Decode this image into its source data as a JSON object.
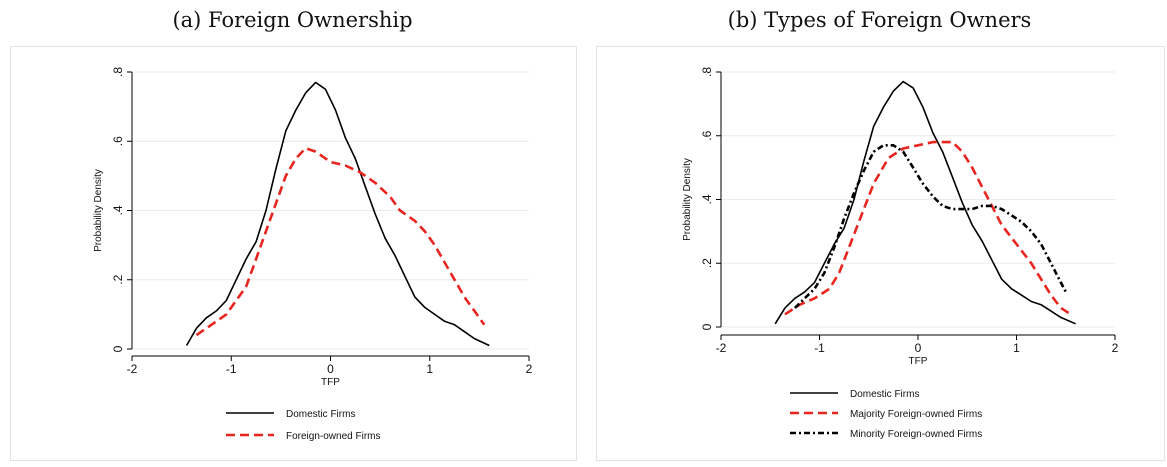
{
  "captions": {
    "a": "(a) Foreign Ownership",
    "b": "(b) Types of Foreign Owners"
  },
  "chart_data": [
    {
      "type": "line",
      "xlabel": "TFP",
      "ylabel": "Probability Density",
      "xlim": [
        -2,
        2
      ],
      "ylim": [
        0,
        0.8
      ],
      "xticks": [
        "-2",
        "-1",
        "0",
        "1",
        "2"
      ],
      "yticks": [
        "0",
        ".2",
        ".4",
        ".6",
        ".8"
      ],
      "grid": true,
      "legend_position": "bottom",
      "series": [
        {
          "name": "Domestic Firms",
          "color": "#000000",
          "style": "solid",
          "x": [
            -1.45,
            -1.35,
            -1.25,
            -1.15,
            -1.05,
            -0.95,
            -0.85,
            -0.75,
            -0.65,
            -0.55,
            -0.45,
            -0.35,
            -0.25,
            -0.15,
            -0.05,
            0.05,
            0.15,
            0.25,
            0.35,
            0.45,
            0.55,
            0.65,
            0.75,
            0.85,
            0.95,
            1.05,
            1.15,
            1.25,
            1.35,
            1.45,
            1.6
          ],
          "y": [
            0.01,
            0.06,
            0.09,
            0.11,
            0.14,
            0.2,
            0.26,
            0.31,
            0.4,
            0.52,
            0.63,
            0.69,
            0.74,
            0.77,
            0.75,
            0.69,
            0.61,
            0.55,
            0.47,
            0.39,
            0.32,
            0.27,
            0.21,
            0.15,
            0.12,
            0.1,
            0.08,
            0.07,
            0.05,
            0.03,
            0.01
          ]
        },
        {
          "name": "Foreign-owned Firms",
          "color": "#e8251f",
          "style": "dashed",
          "x": [
            -1.35,
            -1.2,
            -1.05,
            -0.95,
            -0.85,
            -0.75,
            -0.6,
            -0.45,
            -0.35,
            -0.25,
            -0.15,
            0.0,
            0.15,
            0.3,
            0.45,
            0.6,
            0.7,
            0.85,
            0.95,
            1.05,
            1.15,
            1.25,
            1.35,
            1.45,
            1.55
          ],
          "y": [
            0.04,
            0.07,
            0.1,
            0.14,
            0.18,
            0.26,
            0.38,
            0.5,
            0.55,
            0.58,
            0.57,
            0.54,
            0.53,
            0.51,
            0.48,
            0.44,
            0.4,
            0.37,
            0.34,
            0.3,
            0.25,
            0.2,
            0.15,
            0.11,
            0.07
          ]
        }
      ]
    },
    {
      "type": "line",
      "xlabel": "TFP",
      "ylabel": "Probability Density",
      "xlim": [
        -2,
        2
      ],
      "ylim": [
        0,
        0.8
      ],
      "xticks": [
        "-2",
        "-1",
        "0",
        "1",
        "2"
      ],
      "yticks": [
        "0",
        ".2",
        ".4",
        ".6",
        ".8"
      ],
      "grid": true,
      "legend_position": "bottom",
      "series": [
        {
          "name": "Domestic Firms",
          "color": "#000000",
          "style": "solid",
          "x": [
            -1.45,
            -1.35,
            -1.25,
            -1.15,
            -1.05,
            -0.95,
            -0.85,
            -0.75,
            -0.65,
            -0.55,
            -0.45,
            -0.35,
            -0.25,
            -0.15,
            -0.05,
            0.05,
            0.15,
            0.25,
            0.35,
            0.45,
            0.55,
            0.65,
            0.75,
            0.85,
            0.95,
            1.05,
            1.15,
            1.25,
            1.35,
            1.45,
            1.6
          ],
          "y": [
            0.01,
            0.06,
            0.09,
            0.11,
            0.14,
            0.2,
            0.26,
            0.31,
            0.4,
            0.52,
            0.63,
            0.69,
            0.74,
            0.77,
            0.75,
            0.69,
            0.61,
            0.55,
            0.47,
            0.39,
            0.32,
            0.27,
            0.21,
            0.15,
            0.12,
            0.1,
            0.08,
            0.07,
            0.05,
            0.03,
            0.01
          ]
        },
        {
          "name": "Majority Foreign-owned Firms",
          "color": "#e8251f",
          "style": "dashed",
          "x": [
            -1.35,
            -1.2,
            -1.05,
            -0.9,
            -0.8,
            -0.7,
            -0.6,
            -0.45,
            -0.3,
            -0.15,
            0.0,
            0.15,
            0.25,
            0.35,
            0.45,
            0.55,
            0.65,
            0.75,
            0.85,
            0.95,
            1.05,
            1.15,
            1.25,
            1.35,
            1.45,
            1.55
          ],
          "y": [
            0.04,
            0.07,
            0.09,
            0.12,
            0.17,
            0.25,
            0.33,
            0.45,
            0.53,
            0.56,
            0.57,
            0.58,
            0.58,
            0.58,
            0.55,
            0.5,
            0.44,
            0.38,
            0.32,
            0.28,
            0.24,
            0.2,
            0.15,
            0.1,
            0.06,
            0.04
          ]
        },
        {
          "name": "Minority Foreign-owned Firms",
          "color": "#000000",
          "style": "dash-dot",
          "x": [
            -1.25,
            -1.15,
            -1.05,
            -0.95,
            -0.85,
            -0.75,
            -0.65,
            -0.55,
            -0.45,
            -0.35,
            -0.25,
            -0.15,
            -0.05,
            0.05,
            0.15,
            0.25,
            0.35,
            0.45,
            0.55,
            0.65,
            0.75,
            0.85,
            0.95,
            1.05,
            1.15,
            1.25,
            1.35,
            1.45,
            1.5
          ],
          "y": [
            0.06,
            0.09,
            0.12,
            0.17,
            0.25,
            0.34,
            0.42,
            0.49,
            0.55,
            0.57,
            0.57,
            0.55,
            0.5,
            0.45,
            0.41,
            0.38,
            0.37,
            0.37,
            0.37,
            0.38,
            0.38,
            0.37,
            0.35,
            0.33,
            0.3,
            0.26,
            0.2,
            0.14,
            0.11
          ]
        }
      ]
    }
  ]
}
